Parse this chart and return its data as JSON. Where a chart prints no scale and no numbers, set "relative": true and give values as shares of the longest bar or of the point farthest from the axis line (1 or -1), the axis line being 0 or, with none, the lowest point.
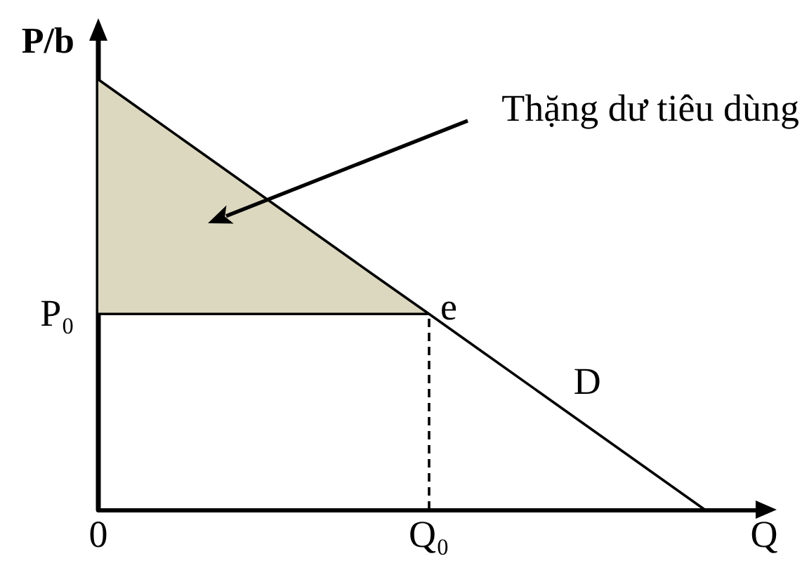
{
  "chart_data": {
    "type": "line",
    "relative": true,
    "xlabel": "Q",
    "ylabel": "P/b",
    "categories": [
      "0",
      null,
      null,
      null,
      null,
      null,
      "Q₀",
      null,
      null,
      null,
      null,
      null,
      null
    ],
    "series": [
      {
        "name": "D",
        "color": "#000000",
        "values": [
          1,
          0.909,
          0.818,
          0.727,
          0.636,
          0.545,
          0.455,
          0.364,
          0.273,
          0.182,
          0.091,
          0,
          null
        ]
      },
      {
        "color": "#000000",
        "values": [
          0.455,
          0.455,
          0.455,
          0.455,
          0.455,
          0.455,
          0.455,
          null,
          null,
          null,
          null,
          null,
          null
        ],
        "lower": [
          0.455,
          0.455,
          0.455,
          0.455,
          0.455,
          0.455,
          0.455,
          null,
          null,
          null,
          null,
          null,
          null
        ],
        "upper": [
          1,
          0.909,
          0.818,
          0.727,
          0.636,
          0.545,
          0.455,
          null,
          null,
          null,
          null,
          null,
          null
        ]
      },
      {
        "color": "#000000",
        "x": [
          "Q₀",
          "Q₀"
        ],
        "values": [
          0,
          0.455
        ],
        "line_style": "dashed"
      }
    ],
    "annotations": [
      {
        "text": "e",
        "x": "Q₀",
        "y": 0.455
      },
      "Thặng dư tiêu dùng",
      "P₀"
    ],
    "grid": false,
    "legend": false,
    "marker": "none",
    "line_style": "solid"
  }
}
